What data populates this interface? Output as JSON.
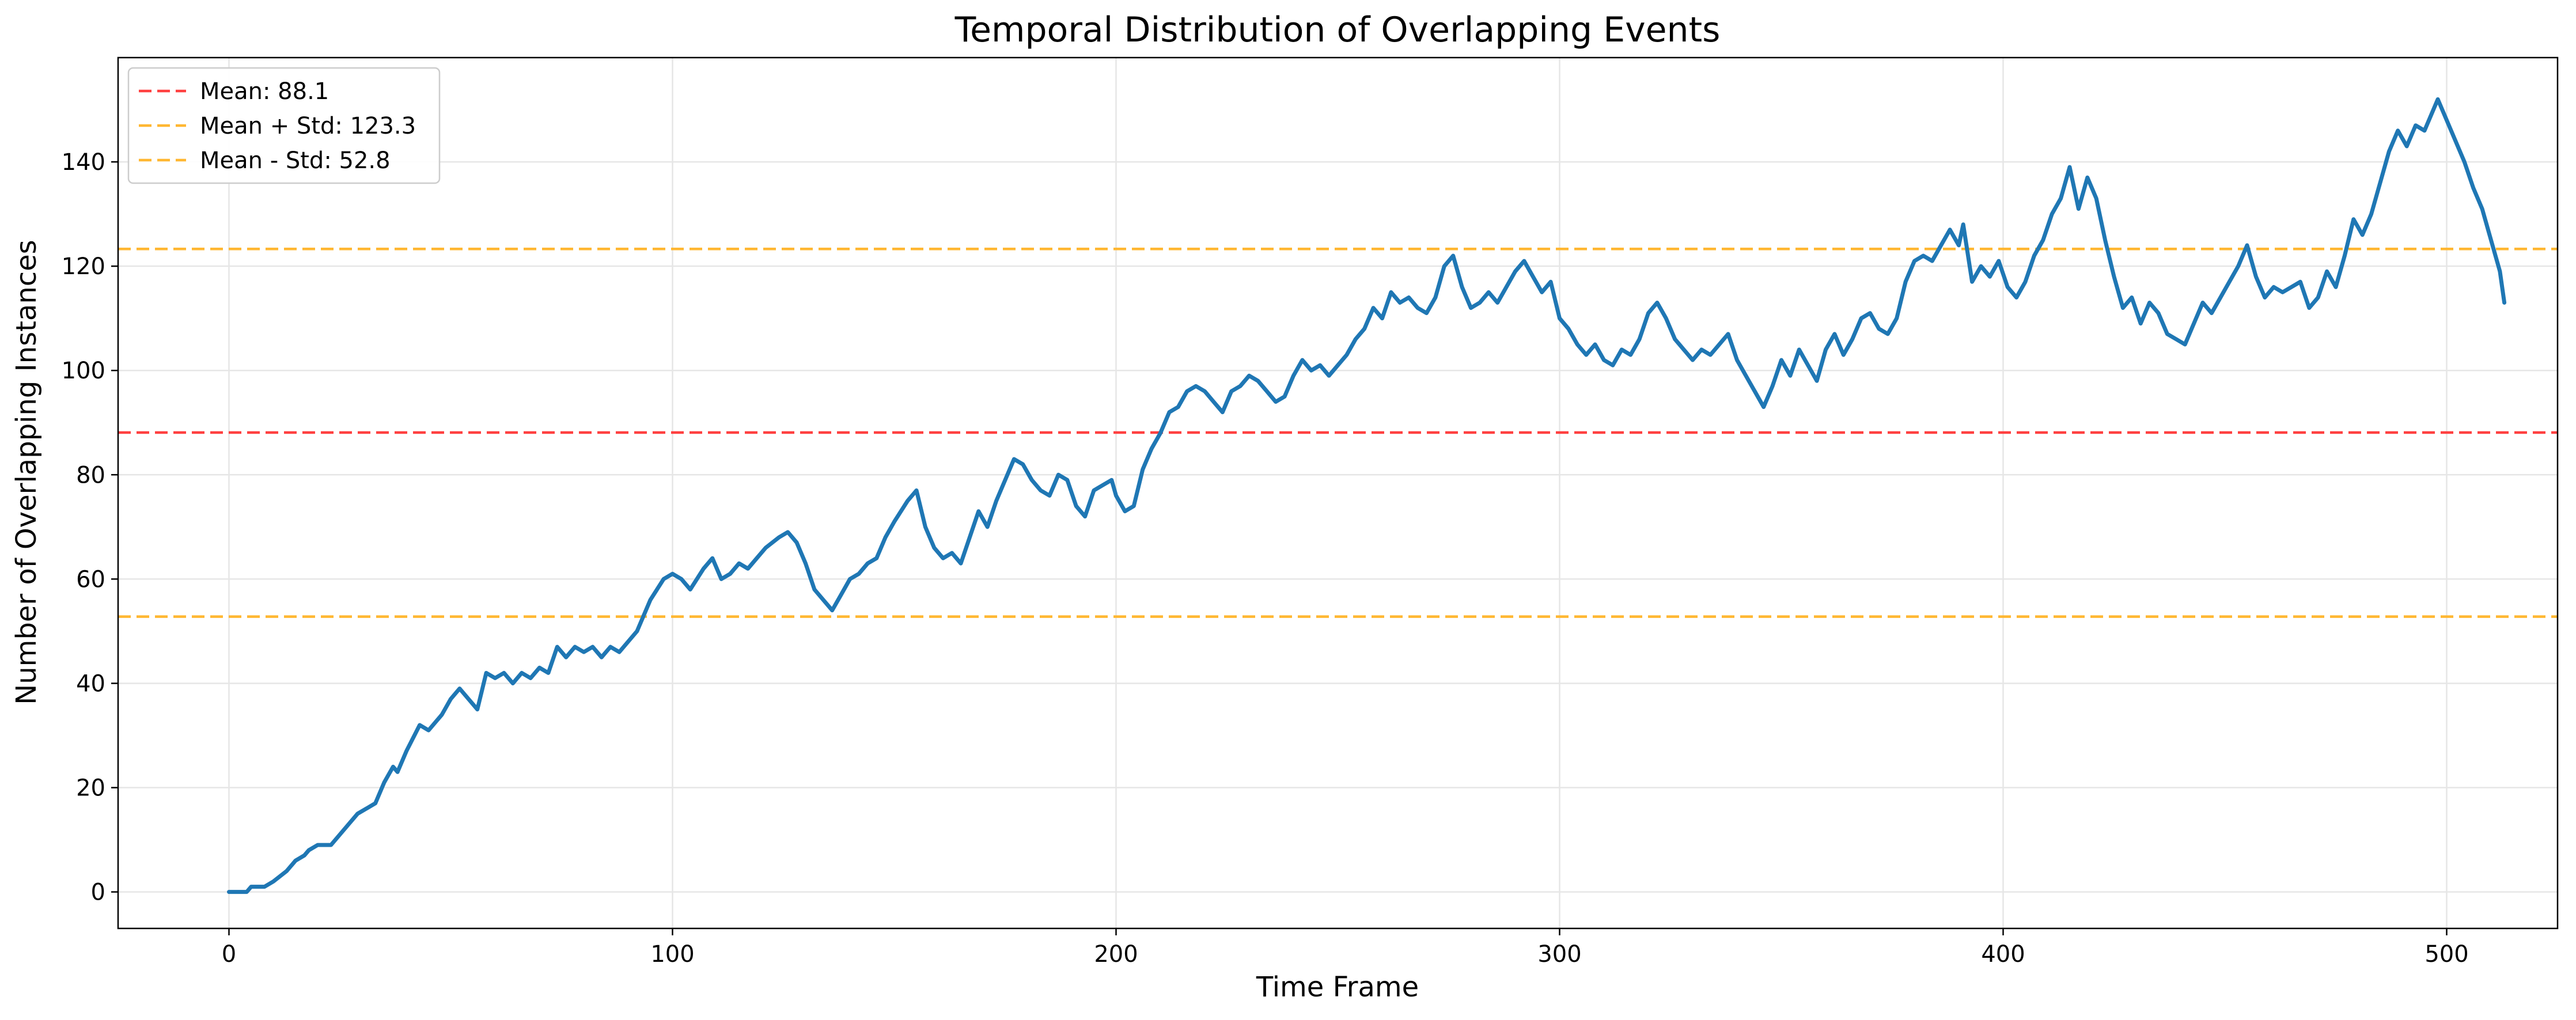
{
  "chart_data": {
    "type": "line",
    "title": "Temporal Distribution of Overlapping Events",
    "xlabel": "Time Frame",
    "ylabel": "Number of Overlapping Instances",
    "xlim": [
      -25,
      525
    ],
    "ylim": [
      -7,
      160
    ],
    "xticks": [
      0,
      100,
      200,
      300,
      400,
      500
    ],
    "yticks": [
      0,
      20,
      40,
      60,
      80,
      100,
      120,
      140
    ],
    "grid": true,
    "legend_position": "top-left",
    "colors": {
      "series": "#1f77b4",
      "mean": "#ff4040",
      "std": "#ffb732"
    },
    "series": [
      {
        "points": [
          [
            0,
            0
          ],
          [
            4,
            0
          ],
          [
            5,
            1
          ],
          [
            8,
            1
          ],
          [
            10,
            2
          ],
          [
            13,
            4
          ],
          [
            15,
            6
          ],
          [
            17,
            7
          ],
          [
            18,
            8
          ],
          [
            20,
            9
          ],
          [
            23,
            9
          ],
          [
            25,
            11
          ],
          [
            27,
            13
          ],
          [
            29,
            15
          ],
          [
            31,
            16
          ],
          [
            33,
            17
          ],
          [
            35,
            21
          ],
          [
            37,
            24
          ],
          [
            38,
            23
          ],
          [
            40,
            27
          ],
          [
            43,
            32
          ],
          [
            45,
            31
          ],
          [
            48,
            34
          ],
          [
            50,
            37
          ],
          [
            52,
            39
          ],
          [
            54,
            37
          ],
          [
            56,
            35
          ],
          [
            58,
            42
          ],
          [
            60,
            41
          ],
          [
            62,
            42
          ],
          [
            64,
            40
          ],
          [
            66,
            42
          ],
          [
            68,
            41
          ],
          [
            70,
            43
          ],
          [
            72,
            42
          ],
          [
            74,
            47
          ],
          [
            76,
            45
          ],
          [
            78,
            47
          ],
          [
            80,
            46
          ],
          [
            82,
            47
          ],
          [
            84,
            45
          ],
          [
            86,
            47
          ],
          [
            88,
            46
          ],
          [
            90,
            48
          ],
          [
            92,
            50
          ],
          [
            95,
            56
          ],
          [
            98,
            60
          ],
          [
            100,
            61
          ],
          [
            102,
            60
          ],
          [
            104,
            58
          ],
          [
            107,
            62
          ],
          [
            109,
            64
          ],
          [
            111,
            60
          ],
          [
            113,
            61
          ],
          [
            115,
            63
          ],
          [
            117,
            62
          ],
          [
            119,
            64
          ],
          [
            121,
            66
          ],
          [
            124,
            68
          ],
          [
            126,
            69
          ],
          [
            128,
            67
          ],
          [
            130,
            63
          ],
          [
            132,
            58
          ],
          [
            134,
            56
          ],
          [
            136,
            54
          ],
          [
            138,
            57
          ],
          [
            140,
            60
          ],
          [
            142,
            61
          ],
          [
            144,
            63
          ],
          [
            146,
            64
          ],
          [
            148,
            68
          ],
          [
            150,
            71
          ],
          [
            153,
            75
          ],
          [
            155,
            77
          ],
          [
            157,
            70
          ],
          [
            159,
            66
          ],
          [
            161,
            64
          ],
          [
            163,
            65
          ],
          [
            165,
            63
          ],
          [
            167,
            68
          ],
          [
            169,
            73
          ],
          [
            171,
            70
          ],
          [
            173,
            75
          ],
          [
            175,
            79
          ],
          [
            177,
            83
          ],
          [
            179,
            82
          ],
          [
            181,
            79
          ],
          [
            183,
            77
          ],
          [
            185,
            76
          ],
          [
            187,
            80
          ],
          [
            189,
            79
          ],
          [
            191,
            74
          ],
          [
            193,
            72
          ],
          [
            195,
            77
          ],
          [
            197,
            78
          ],
          [
            199,
            79
          ],
          [
            200,
            76
          ],
          [
            202,
            73
          ],
          [
            204,
            74
          ],
          [
            206,
            81
          ],
          [
            208,
            85
          ],
          [
            210,
            88
          ],
          [
            212,
            92
          ],
          [
            214,
            93
          ],
          [
            216,
            96
          ],
          [
            218,
            97
          ],
          [
            220,
            96
          ],
          [
            222,
            94
          ],
          [
            224,
            92
          ],
          [
            226,
            96
          ],
          [
            228,
            97
          ],
          [
            230,
            99
          ],
          [
            232,
            98
          ],
          [
            234,
            96
          ],
          [
            236,
            94
          ],
          [
            238,
            95
          ],
          [
            240,
            99
          ],
          [
            242,
            102
          ],
          [
            244,
            100
          ],
          [
            246,
            101
          ],
          [
            248,
            99
          ],
          [
            250,
            101
          ],
          [
            252,
            103
          ],
          [
            254,
            106
          ],
          [
            256,
            108
          ],
          [
            258,
            112
          ],
          [
            260,
            110
          ],
          [
            262,
            115
          ],
          [
            264,
            113
          ],
          [
            266,
            114
          ],
          [
            268,
            112
          ],
          [
            270,
            111
          ],
          [
            272,
            114
          ],
          [
            274,
            120
          ],
          [
            276,
            122
          ],
          [
            278,
            116
          ],
          [
            280,
            112
          ],
          [
            282,
            113
          ],
          [
            284,
            115
          ],
          [
            286,
            113
          ],
          [
            288,
            116
          ],
          [
            290,
            119
          ],
          [
            292,
            121
          ],
          [
            294,
            118
          ],
          [
            296,
            115
          ],
          [
            298,
            117
          ],
          [
            300,
            110
          ],
          [
            302,
            108
          ],
          [
            304,
            105
          ],
          [
            306,
            103
          ],
          [
            308,
            105
          ],
          [
            310,
            102
          ],
          [
            312,
            101
          ],
          [
            314,
            104
          ],
          [
            316,
            103
          ],
          [
            318,
            106
          ],
          [
            320,
            111
          ],
          [
            322,
            113
          ],
          [
            324,
            110
          ],
          [
            326,
            106
          ],
          [
            328,
            104
          ],
          [
            330,
            102
          ],
          [
            332,
            104
          ],
          [
            334,
            103
          ],
          [
            336,
            105
          ],
          [
            338,
            107
          ],
          [
            340,
            102
          ],
          [
            342,
            99
          ],
          [
            344,
            96
          ],
          [
            346,
            93
          ],
          [
            348,
            97
          ],
          [
            350,
            102
          ],
          [
            352,
            99
          ],
          [
            354,
            104
          ],
          [
            356,
            101
          ],
          [
            358,
            98
          ],
          [
            360,
            104
          ],
          [
            362,
            107
          ],
          [
            364,
            103
          ],
          [
            366,
            106
          ],
          [
            368,
            110
          ],
          [
            370,
            111
          ],
          [
            372,
            108
          ],
          [
            374,
            107
          ],
          [
            376,
            110
          ],
          [
            378,
            117
          ],
          [
            380,
            121
          ],
          [
            382,
            122
          ],
          [
            384,
            121
          ],
          [
            386,
            124
          ],
          [
            388,
            127
          ],
          [
            390,
            124
          ],
          [
            391,
            128
          ],
          [
            393,
            117
          ],
          [
            395,
            120
          ],
          [
            397,
            118
          ],
          [
            399,
            121
          ],
          [
            401,
            116
          ],
          [
            403,
            114
          ],
          [
            405,
            117
          ],
          [
            407,
            122
          ],
          [
            409,
            125
          ],
          [
            411,
            130
          ],
          [
            413,
            133
          ],
          [
            415,
            139
          ],
          [
            417,
            131
          ],
          [
            419,
            137
          ],
          [
            421,
            133
          ],
          [
            423,
            125
          ],
          [
            425,
            118
          ],
          [
            427,
            112
          ],
          [
            429,
            114
          ],
          [
            431,
            109
          ],
          [
            433,
            113
          ],
          [
            435,
            111
          ],
          [
            437,
            107
          ],
          [
            439,
            106
          ],
          [
            441,
            105
          ],
          [
            443,
            109
          ],
          [
            445,
            113
          ],
          [
            447,
            111
          ],
          [
            449,
            114
          ],
          [
            451,
            117
          ],
          [
            453,
            120
          ],
          [
            455,
            124
          ],
          [
            457,
            118
          ],
          [
            459,
            114
          ],
          [
            461,
            116
          ],
          [
            463,
            115
          ],
          [
            465,
            116
          ],
          [
            467,
            117
          ],
          [
            469,
            112
          ],
          [
            471,
            114
          ],
          [
            473,
            119
          ],
          [
            475,
            116
          ],
          [
            477,
            122
          ],
          [
            479,
            129
          ],
          [
            481,
            126
          ],
          [
            483,
            130
          ],
          [
            485,
            136
          ],
          [
            487,
            142
          ],
          [
            489,
            146
          ],
          [
            491,
            143
          ],
          [
            493,
            147
          ],
          [
            495,
            146
          ],
          [
            497,
            150
          ],
          [
            498,
            152
          ],
          [
            500,
            148
          ],
          [
            502,
            144
          ],
          [
            504,
            140
          ],
          [
            506,
            135
          ],
          [
            508,
            131
          ],
          [
            510,
            125
          ],
          [
            512,
            119
          ],
          [
            513,
            113
          ]
        ]
      }
    ],
    "reference_lines": [
      {
        "y": 88.1,
        "label": "Mean: 88.1",
        "color_key": "mean"
      },
      {
        "y": 123.3,
        "label": "Mean + Std: 123.3",
        "color_key": "std"
      },
      {
        "y": 52.8,
        "label": "Mean - Std: 52.8",
        "color_key": "std"
      }
    ]
  }
}
